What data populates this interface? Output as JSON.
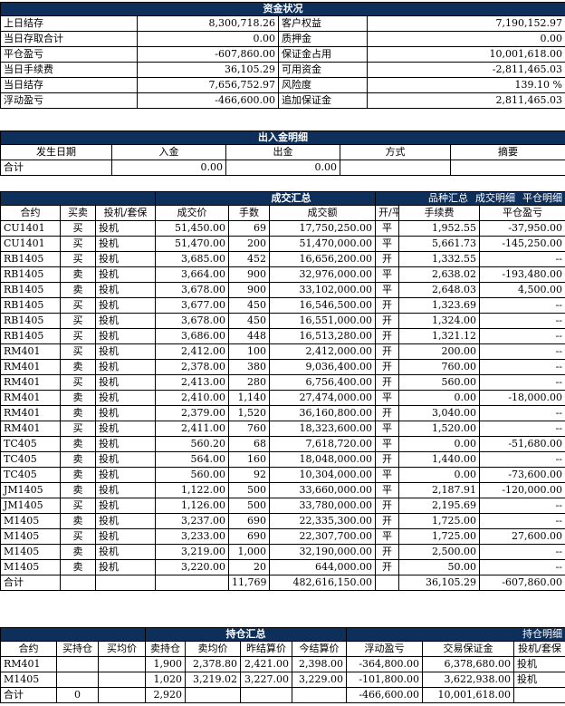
{
  "funds": {
    "title": "资金状况",
    "rows": [
      {
        "l1": "上日结存",
        "v1": "8,300,718.26",
        "l2": "客户权益",
        "v2": "7,190,152.97"
      },
      {
        "l1": "当日存取合计",
        "v1": "0.00",
        "l2": "质押金",
        "v2": "0.00"
      },
      {
        "l1": "平仓盈亏",
        "v1": "-607,860.00",
        "l2": "保证金占用",
        "v2": "10,001,618.00"
      },
      {
        "l1": "当日手续费",
        "v1": "36,105.29",
        "l2": "可用资金",
        "v2": "-2,811,465.03"
      },
      {
        "l1": "当日结存",
        "v1": "7,656,752.97",
        "l2": "风险度",
        "v2": "139.10 %"
      },
      {
        "l1": "浮动盈亏",
        "v1": "-466,600.00",
        "l2": "追加保证金",
        "v2": "2,811,465.03"
      }
    ]
  },
  "inout": {
    "title": "出入金明细",
    "headers": [
      "发生日期",
      "入金",
      "出金",
      "方式",
      "摘要"
    ],
    "total": {
      "label": "合计",
      "in": "0.00",
      "out": "0.00"
    }
  },
  "trades": {
    "title": "成交汇总",
    "links": [
      "品种汇总",
      "成交明细",
      "平仓明细"
    ],
    "headers": [
      "合约",
      "买卖",
      "投机/套保",
      "成交价",
      "手数",
      "成交额",
      "开/平",
      "手续费",
      "平仓盈亏"
    ],
    "rows": [
      [
        "CU1401",
        "买",
        "投机",
        "51,450.00",
        "69",
        "17,750,250.00",
        "平",
        "1,952.55",
        "-37,950.00"
      ],
      [
        "CU1401",
        "买",
        "投机",
        "51,470.00",
        "200",
        "51,470,000.00",
        "平",
        "5,661.73",
        "-145,250.00"
      ],
      [
        "RB1405",
        "买",
        "投机",
        "3,685.00",
        "452",
        "16,656,200.00",
        "开",
        "1,332.55",
        "--"
      ],
      [
        "RB1405",
        "卖",
        "投机",
        "3,664.00",
        "900",
        "32,976,000.00",
        "平",
        "2,638.02",
        "-193,480.00"
      ],
      [
        "RB1405",
        "卖",
        "投机",
        "3,678.00",
        "900",
        "33,102,000.00",
        "平",
        "2,648.03",
        "4,500.00"
      ],
      [
        "RB1405",
        "买",
        "投机",
        "3,677.00",
        "450",
        "16,546,500.00",
        "开",
        "1,323.69",
        "--"
      ],
      [
        "RB1405",
        "买",
        "投机",
        "3,678.00",
        "450",
        "16,551,000.00",
        "开",
        "1,324.00",
        "--"
      ],
      [
        "RB1405",
        "买",
        "投机",
        "3,686.00",
        "448",
        "16,513,280.00",
        "开",
        "1,321.12",
        "--"
      ],
      [
        "RM401",
        "买",
        "投机",
        "2,412.00",
        "100",
        "2,412,000.00",
        "开",
        "200.00",
        "--"
      ],
      [
        "RM401",
        "卖",
        "投机",
        "2,378.00",
        "380",
        "9,036,400.00",
        "开",
        "760.00",
        "--"
      ],
      [
        "RM401",
        "买",
        "投机",
        "2,413.00",
        "280",
        "6,756,400.00",
        "开",
        "560.00",
        "--"
      ],
      [
        "RM401",
        "卖",
        "投机",
        "2,410.00",
        "1,140",
        "27,474,000.00",
        "平",
        "0.00",
        "-18,000.00"
      ],
      [
        "RM401",
        "卖",
        "投机",
        "2,379.00",
        "1,520",
        "36,160,800.00",
        "开",
        "3,040.00",
        "--"
      ],
      [
        "RM401",
        "买",
        "投机",
        "2,411.00",
        "760",
        "18,323,600.00",
        "平",
        "1,520.00",
        "--"
      ],
      [
        "TC405",
        "卖",
        "投机",
        "560.20",
        "68",
        "7,618,720.00",
        "平",
        "0.00",
        "-51,680.00"
      ],
      [
        "TC405",
        "卖",
        "投机",
        "564.00",
        "160",
        "18,048,000.00",
        "开",
        "1,440.00",
        "--"
      ],
      [
        "TC405",
        "卖",
        "投机",
        "560.00",
        "92",
        "10,304,000.00",
        "平",
        "0.00",
        "-73,600.00"
      ],
      [
        "JM1405",
        "卖",
        "投机",
        "1,122.00",
        "500",
        "33,660,000.00",
        "平",
        "2,187.91",
        "-120,000.00"
      ],
      [
        "JM1405",
        "买",
        "投机",
        "1,126.00",
        "500",
        "33,780,000.00",
        "开",
        "2,195.69",
        "--"
      ],
      [
        "M1405",
        "卖",
        "投机",
        "3,237.00",
        "690",
        "22,335,300.00",
        "开",
        "1,725.00",
        "--"
      ],
      [
        "M1405",
        "买",
        "投机",
        "3,233.00",
        "690",
        "22,307,700.00",
        "平",
        "1,725.00",
        "27,600.00"
      ],
      [
        "M1405",
        "卖",
        "投机",
        "3,219.00",
        "1,000",
        "32,190,000.00",
        "开",
        "2,500.00",
        "--"
      ],
      [
        "M1405",
        "卖",
        "投机",
        "3,220.00",
        "20",
        "644,000.00",
        "开",
        "50.00",
        "--"
      ]
    ],
    "total": {
      "label": "合计",
      "lots": "11,769",
      "amount": "482,616,150.00",
      "fee": "36,105.29",
      "pnl": "-607,860.00"
    }
  },
  "positions": {
    "title": "持仓汇总",
    "link": "持仓明细",
    "headers": [
      "合约",
      "买持仓",
      "买均价",
      "卖持仓",
      "卖均价",
      "昨结算价",
      "今结算价",
      "浮动盈亏",
      "交易保证金",
      "投机/套保"
    ],
    "rows": [
      [
        "RM401",
        "",
        "",
        "1,900",
        "2,378.80",
        "2,421.00",
        "2,398.00",
        "-364,800.00",
        "6,378,680.00",
        "投机"
      ],
      [
        "M1405",
        "",
        "",
        "1,020",
        "3,219.02",
        "3,227.00",
        "3,229.00",
        "-101,800.00",
        "3,622,938.00",
        "投机"
      ]
    ],
    "total": {
      "label": "合计",
      "buy": "0",
      "sell": "2,920",
      "pnl": "-466,600.00",
      "margin": "10,001,618.00"
    }
  }
}
